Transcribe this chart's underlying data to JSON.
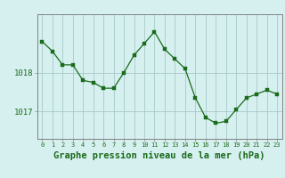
{
  "x": [
    0,
    1,
    2,
    3,
    4,
    5,
    6,
    7,
    8,
    9,
    10,
    11,
    12,
    13,
    14,
    15,
    16,
    17,
    18,
    19,
    20,
    21,
    22,
    23
  ],
  "y": [
    1018.8,
    1018.55,
    1018.2,
    1018.2,
    1017.8,
    1017.75,
    1017.6,
    1017.6,
    1018.0,
    1018.45,
    1018.75,
    1019.05,
    1018.6,
    1018.35,
    1018.1,
    1017.35,
    1016.85,
    1016.7,
    1016.75,
    1017.05,
    1017.35,
    1017.45,
    1017.55,
    1017.45
  ],
  "line_color": "#1a6b1a",
  "marker_color": "#1a6b1a",
  "bg_color": "#d6f0f0",
  "grid_color": "#a8c8c8",
  "axis_color": "#808080",
  "title": "Graphe pression niveau de la mer (hPa)",
  "title_color": "#1a6b1a",
  "title_fontsize": 7.5,
  "yticks": [
    1017,
    1018
  ],
  "ytick_labels": [
    "1017",
    "1018"
  ],
  "ylim": [
    1016.3,
    1019.5
  ],
  "xlim": [
    -0.5,
    23.5
  ],
  "xtick_labels": [
    "0",
    "1",
    "2",
    "3",
    "4",
    "5",
    "6",
    "7",
    "8",
    "9",
    "10",
    "11",
    "12",
    "13",
    "14",
    "15",
    "16",
    "17",
    "18",
    "19",
    "20",
    "21",
    "22",
    "23"
  ]
}
